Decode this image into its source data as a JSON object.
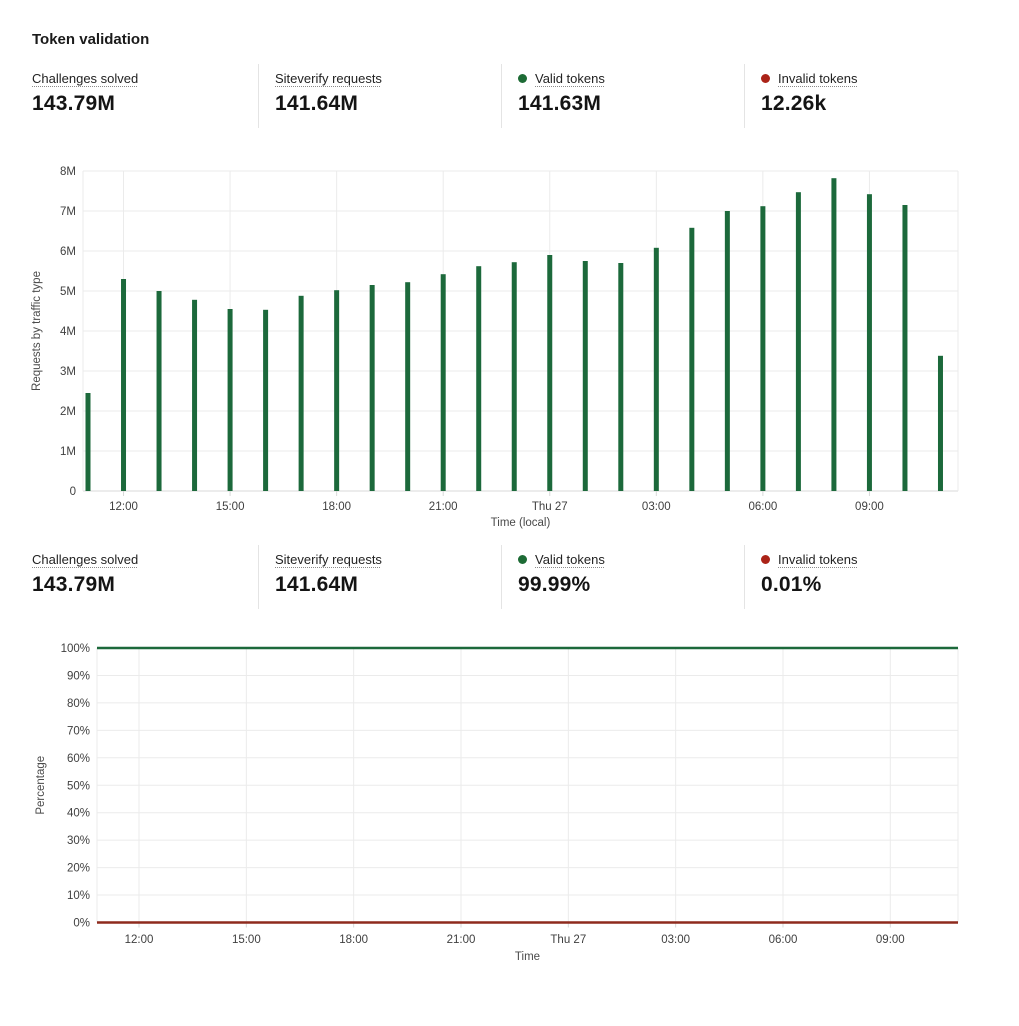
{
  "page": {
    "title": "Token validation"
  },
  "stats_top": [
    {
      "label": "Challenges solved",
      "value": "143.79M"
    },
    {
      "label": "Siteverify requests",
      "value": "141.64M"
    },
    {
      "label": "Valid tokens",
      "value": "141.63M",
      "dot_color": "#1D6B35"
    },
    {
      "label": "Invalid tokens",
      "value": "12.26k",
      "dot_color": "#AB2318"
    }
  ],
  "stats_bottom": [
    {
      "label": "Challenges solved",
      "value": "143.79M"
    },
    {
      "label": "Siteverify requests",
      "value": "141.64M"
    },
    {
      "label": "Valid tokens",
      "value": "99.99%",
      "dot_color": "#1D6B35"
    },
    {
      "label": "Invalid tokens",
      "value": "0.01%",
      "dot_color": "#AB2318"
    }
  ],
  "chart_data": [
    {
      "type": "bar",
      "series_name": "Valid tokens",
      "ylabel": "Requests by traffic type",
      "xlabel": "Time (local)",
      "ylim_M": [
        0,
        8
      ],
      "y_tick_labels": [
        "0",
        "1M",
        "2M",
        "3M",
        "4M",
        "5M",
        "6M",
        "7M",
        "8M"
      ],
      "x_tick_labels": [
        "12:00",
        "15:00",
        "18:00",
        "21:00",
        "Thu 27",
        "03:00",
        "06:00",
        "09:00"
      ],
      "x_tick_indices": [
        1,
        4,
        7,
        10,
        13,
        16,
        19,
        22
      ],
      "categories": [
        "11:00",
        "12:00",
        "13:00",
        "14:00",
        "15:00",
        "16:00",
        "17:00",
        "18:00",
        "19:00",
        "20:00",
        "21:00",
        "22:00",
        "23:00",
        "Thu 27 00:00",
        "01:00",
        "02:00",
        "03:00",
        "04:00",
        "05:00",
        "06:00",
        "07:00",
        "08:00",
        "09:00",
        "10:00",
        "11:00"
      ],
      "values_M": [
        2.45,
        5.3,
        5.0,
        4.78,
        4.55,
        4.53,
        4.88,
        5.02,
        5.15,
        5.22,
        5.42,
        5.62,
        5.72,
        5.9,
        5.75,
        5.7,
        6.08,
        6.58,
        7.0,
        7.12,
        7.47,
        7.82,
        7.42,
        7.15,
        3.38
      ],
      "bar_color": "#1C693B",
      "grid": true,
      "legend_position": "none"
    },
    {
      "type": "line",
      "ylabel": "Percentage",
      "xlabel": "Time",
      "ylim_pct": [
        0,
        100
      ],
      "y_tick_step_pct": 10,
      "x_tick_labels": [
        "12:00",
        "15:00",
        "18:00",
        "21:00",
        "Thu 27",
        "03:00",
        "06:00",
        "09:00"
      ],
      "series": [
        {
          "name": "Valid tokens",
          "value_pct": 99.99,
          "color": "#1C693B"
        },
        {
          "name": "Invalid tokens",
          "value_pct": 0.01,
          "color": "#8E2A1D"
        }
      ],
      "grid": true,
      "legend_position": "none"
    }
  ]
}
